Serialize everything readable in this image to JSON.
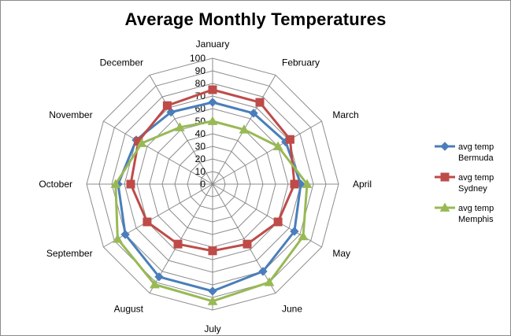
{
  "chart_data": {
    "type": "radar",
    "title": "Average Monthly Temperatures",
    "categories": [
      "January",
      "February",
      "March",
      "April",
      "May",
      "June",
      "July",
      "August",
      "September",
      "October",
      "November",
      "December"
    ],
    "rmin": 0,
    "rmax": 100,
    "ticks": [
      0,
      10,
      20,
      30,
      40,
      50,
      60,
      70,
      80,
      90,
      100
    ],
    "grid": true,
    "legend_position": "right",
    "series": [
      {
        "name_line1": "avg temp",
        "name_line2": "Bermuda",
        "color": "#4a7ebb",
        "marker": "diamond",
        "values": [
          65,
          65,
          67,
          70,
          75,
          80,
          85,
          85,
          80,
          75,
          70,
          66
        ]
      },
      {
        "name_line1": "avg temp",
        "name_line2": "Sydney",
        "color": "#be4b48",
        "marker": "square",
        "values": [
          75,
          75,
          71,
          65,
          60,
          55,
          53,
          55,
          60,
          65,
          68,
          72
        ]
      },
      {
        "name_line1": "avg temp",
        "name_line2": "Memphis",
        "color": "#98b954",
        "marker": "triangle",
        "values": [
          50,
          50,
          60,
          75,
          83,
          90,
          93,
          92,
          87,
          77,
          65,
          52
        ]
      }
    ]
  }
}
